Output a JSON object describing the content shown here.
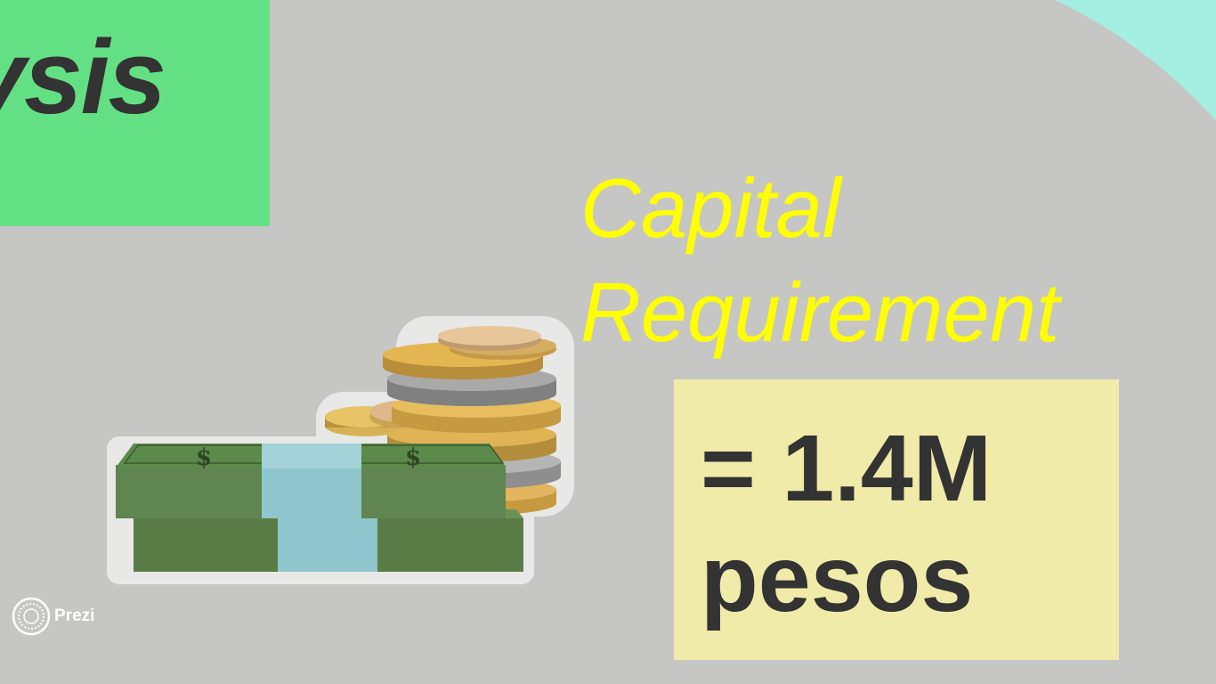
{
  "slide": {
    "title_fragment": "ysis",
    "heading_lines": [
      "Capital",
      "Requirement"
    ],
    "value_lines": [
      "= 1.4M",
      "pesos"
    ]
  },
  "branding": {
    "logo_text": "Prezi",
    "icon": "prezi-logo-icon"
  },
  "illustration": {
    "icon": "money-stack-and-coins-icon"
  },
  "colors": {
    "background": "#c6c6c4",
    "title_box": "#64e084",
    "heading": "#ffff00",
    "value_box": "#f1eba9",
    "text_dark": "#333333",
    "accent_arc": "#a4efe2"
  }
}
